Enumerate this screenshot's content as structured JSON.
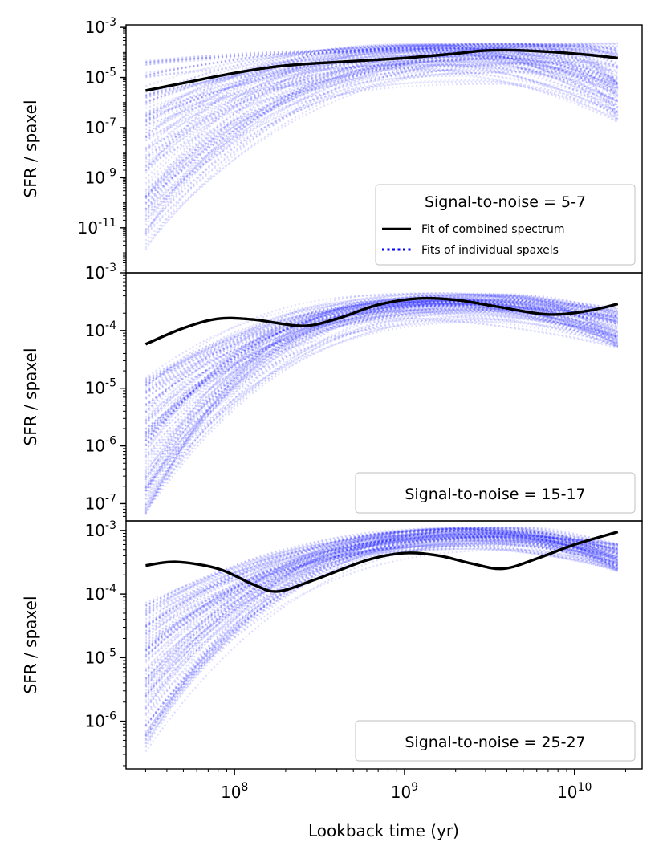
{
  "chart_data": {
    "type": "line",
    "xlabel": "Lookback time (yr)",
    "xscale": "log",
    "xlim": [
      23000000.0,
      25000000000.0
    ],
    "x_ticks": [
      {
        "value": 100000000.0,
        "base": "10",
        "exp": "8"
      },
      {
        "value": 1000000000.0,
        "base": "10",
        "exp": "9"
      },
      {
        "value": 10000000000.0,
        "base": "10",
        "exp": "10"
      }
    ],
    "legend_entries": {
      "combined": "Fit of combined spectrum",
      "individual": "Fits of individual spaxels"
    },
    "colors": {
      "combined": "#000000",
      "individual": "#0000ff"
    },
    "panels": [
      {
        "ylabel": "SFR / spaxel",
        "yscale": "log",
        "ylim_log10": [
          -12.8,
          -2.9
        ],
        "y_ticks": [
          {
            "base": "10",
            "exp": "-3",
            "log": -3
          },
          {
            "base": "10",
            "exp": "-5",
            "log": -5
          },
          {
            "base": "10",
            "exp": "-7",
            "log": -7
          },
          {
            "base": "10",
            "exp": "-9",
            "log": -9
          },
          {
            "base": "10",
            "exp": "-11",
            "log": -11
          }
        ],
        "legend_title": "Signal-to-noise = 5-7",
        "show_entries": true,
        "combined_fit": {
          "x": [
            30000000.0,
            50000000.0,
            100000000.0,
            200000000.0,
            500000000.0,
            1000000000.0,
            2000000000.0,
            3000000000.0,
            5000000000.0,
            10000000000.0,
            18000000000.0
          ],
          "y": [
            3e-06,
            6e-06,
            1.5e-05,
            3e-05,
            4.5e-05,
            6e-05,
            9e-05,
            0.00012,
            0.00012,
            9e-05,
            6e-05
          ]
        },
        "individual_fits": {
          "x_start": 30000000.0,
          "x_end": 18000000000.0,
          "n_spaxels": 120,
          "start_log10_range": [
            -12,
            -4.2
          ],
          "end_log10_range": [
            -6.8,
            -3.6
          ],
          "peak_log10": -3.65,
          "peak_x_log10_range": [
            9.0,
            10.1
          ]
        }
      },
      {
        "ylabel": "SFR / spaxel",
        "yscale": "log",
        "ylim_log10": [
          -7.3,
          -3.0
        ],
        "y_ticks": [
          {
            "base": "10",
            "exp": "-3",
            "log": -3
          },
          {
            "base": "10",
            "exp": "-4",
            "log": -4
          },
          {
            "base": "10",
            "exp": "-5",
            "log": -5
          },
          {
            "base": "10",
            "exp": "-6",
            "log": -6
          },
          {
            "base": "10",
            "exp": "-7",
            "log": -7
          }
        ],
        "legend_title": "Signal-to-noise = 15-17",
        "show_entries": false,
        "combined_fit": {
          "x": [
            30000000.0,
            50000000.0,
            80000000.0,
            130000000.0,
            250000000.0,
            400000000.0,
            700000000.0,
            1200000000.0,
            2000000000.0,
            3500000000.0,
            7000000000.0,
            12000000000.0,
            18000000000.0
          ],
          "y": [
            5.8e-05,
            0.00011,
            0.00016,
            0.000155,
            0.00012,
            0.00016,
            0.00028,
            0.00036,
            0.00034,
            0.00026,
            0.00019,
            0.00022,
            0.00029
          ]
        },
        "individual_fits": {
          "x_start": 30000000.0,
          "x_end": 18000000000.0,
          "n_spaxels": 120,
          "start_log10_range": [
            -7.2,
            -4.8
          ],
          "end_log10_range": [
            -4.3,
            -3.6
          ],
          "peak_log10": -3.35,
          "peak_x_log10_range": [
            9.0,
            9.8
          ]
        }
      },
      {
        "ylabel": "SFR / spaxel",
        "yscale": "log",
        "ylim_log10": [
          -6.75,
          -2.85
        ],
        "y_ticks": [
          {
            "base": "10",
            "exp": "-3",
            "log": -3
          },
          {
            "base": "10",
            "exp": "-4",
            "log": -4
          },
          {
            "base": "10",
            "exp": "-5",
            "log": -5
          },
          {
            "base": "10",
            "exp": "-6",
            "log": -6
          }
        ],
        "legend_title": "Signal-to-noise = 25-27",
        "show_entries": false,
        "combined_fit": {
          "x": [
            30000000.0,
            45000000.0,
            80000000.0,
            130000000.0,
            180000000.0,
            300000000.0,
            600000000.0,
            1000000000.0,
            1600000000.0,
            2500000000.0,
            3800000000.0,
            6000000000.0,
            10000000000.0,
            18000000000.0
          ],
          "y": [
            0.00028,
            0.00032,
            0.00025,
            0.00014,
            0.00011,
            0.00017,
            0.00034,
            0.00044,
            0.0004,
            0.0003,
            0.00025,
            0.00036,
            0.0006,
            0.00095
          ]
        },
        "individual_fits": {
          "x_start": 30000000.0,
          "x_end": 18000000000.0,
          "n_spaxels": 120,
          "start_log10_range": [
            -6.5,
            -4.1
          ],
          "end_log10_range": [
            -3.65,
            -3.2
          ],
          "peak_log10": -2.95,
          "peak_x_log10_range": [
            9.3,
            9.8
          ]
        }
      }
    ]
  }
}
